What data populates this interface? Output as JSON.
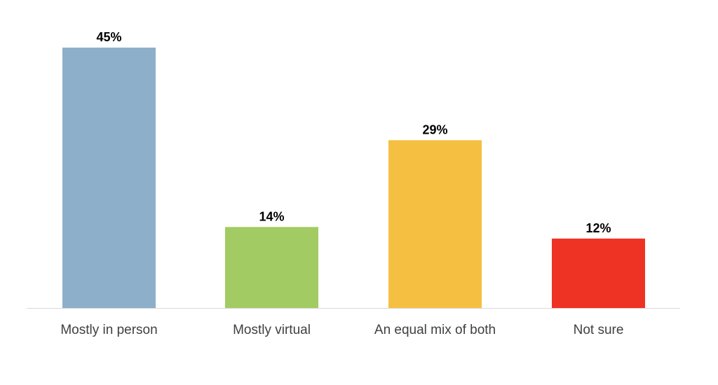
{
  "chart_data": {
    "type": "bar",
    "title": "",
    "xlabel": "",
    "ylabel": "",
    "ylim": [
      0,
      45
    ],
    "grid": false,
    "legend": "none",
    "categories": [
      "Mostly in person",
      "Mostly virtual",
      "An equal mix of both",
      "Not sure"
    ],
    "values": [
      45,
      14,
      29,
      12
    ],
    "value_labels": [
      "45%",
      "14%",
      "29%",
      "12%"
    ],
    "colors": [
      "#8EAFC9",
      "#A2CC63",
      "#F5BF42",
      "#EE3224"
    ],
    "axis_color": "#D9D9D9"
  }
}
